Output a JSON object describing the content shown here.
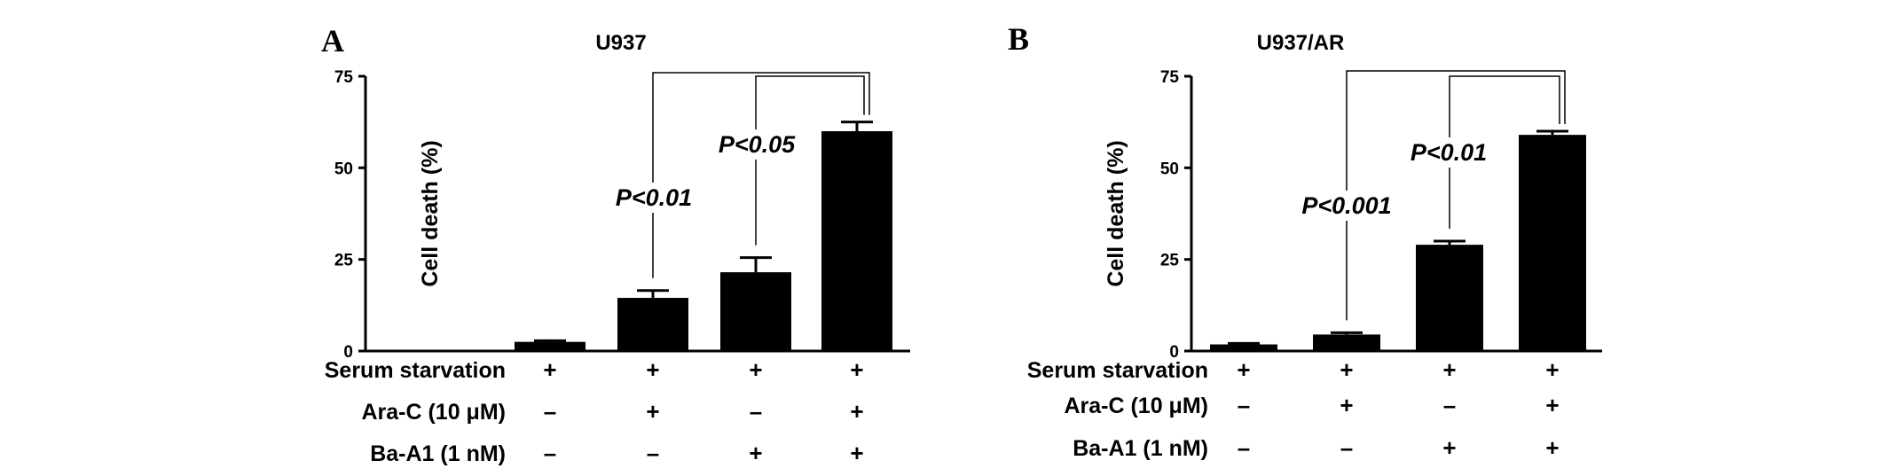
{
  "chart_data": [
    {
      "type": "bar",
      "panel": "A",
      "title": "U937",
      "ylabel": "Cell death (%)",
      "ylim": [
        0,
        75
      ],
      "yticks": [
        0,
        25,
        50,
        75
      ],
      "values": [
        2.5,
        14.5,
        21.5,
        60.0
      ],
      "errors": [
        0.3,
        2.0,
        4.0,
        2.5
      ],
      "conditions": [
        {
          "label": "Serum starvation",
          "signs": [
            "+",
            "+",
            "+",
            "+"
          ]
        },
        {
          "label": "Ara-C (10 μM)",
          "signs": [
            "–",
            "+",
            "–",
            "+"
          ]
        },
        {
          "label": "Ba-A1 (1 nM)",
          "signs": [
            "–",
            "–",
            "+",
            "+"
          ]
        }
      ],
      "comparisons": [
        {
          "from": 1,
          "to": 3,
          "label": "P<0.01"
        },
        {
          "from": 2,
          "to": 3,
          "label": "P<0.05"
        }
      ],
      "grid": false
    },
    {
      "type": "bar",
      "panel": "B",
      "title": "U937/AR",
      "ylabel": "Cell death (%)",
      "ylim": [
        0,
        75
      ],
      "yticks": [
        0,
        25,
        50,
        75
      ],
      "values": [
        1.8,
        4.5,
        29.0,
        59.0
      ],
      "errors": [
        0.3,
        0.5,
        1.0,
        1.0
      ],
      "conditions": [
        {
          "label": "Serum starvation",
          "signs": [
            "+",
            "+",
            "+",
            "+"
          ]
        },
        {
          "label": "Ara-C (10 μM)",
          "signs": [
            "–",
            "+",
            "–",
            "+"
          ]
        },
        {
          "label": "Ba-A1 (1 nM)",
          "signs": [
            "–",
            "–",
            "+",
            "+"
          ]
        }
      ],
      "comparisons": [
        {
          "from": 1,
          "to": 3,
          "label": "P<0.001"
        },
        {
          "from": 2,
          "to": 3,
          "label": "P<0.01"
        }
      ],
      "grid": false
    }
  ]
}
